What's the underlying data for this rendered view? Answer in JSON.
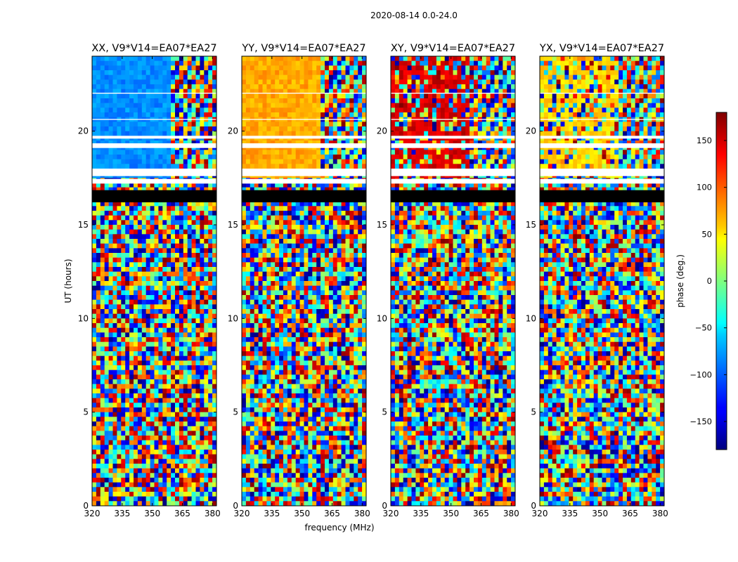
{
  "chart_data": {
    "type": "heatmap",
    "suptitle": "2020-08-14 0.0-24.0",
    "xlabel": "frequency (MHz)",
    "ylabel": "UT (hours)",
    "xlim": [
      320,
      382
    ],
    "ylim": [
      0,
      24
    ],
    "x_ticks": [
      320,
      335,
      350,
      365,
      380
    ],
    "y_ticks": [
      0,
      5,
      10,
      15,
      20
    ],
    "colorbar": {
      "label": "phase (deg.)",
      "range": [
        -180,
        180
      ],
      "ticks": [
        -150,
        -100,
        -50,
        0,
        50,
        100,
        150
      ],
      "tick_labels": [
        "−150",
        "−100",
        "−50",
        "0",
        "50",
        "100",
        "150"
      ],
      "colormap": "jet"
    },
    "panels": [
      {
        "title": "XX, V9*V14=EA07*EA27",
        "polarization": "XX",
        "dominant_phase_deg": -85
      },
      {
        "title": "YY, V9*V14=EA07*EA27",
        "polarization": "YY",
        "dominant_phase_deg": 75
      },
      {
        "title": "XY, V9*V14=EA07*EA27",
        "polarization": "XY",
        "dominant_phase_deg": 150
      },
      {
        "title": "YX, V9*V14=EA07*EA27",
        "polarization": "YX",
        "dominant_phase_deg": 60
      }
    ],
    "flagged_black_hours": [
      [
        16.2,
        16.85
      ]
    ],
    "flagged_white_hours": [
      [
        17.2,
        17.45
      ],
      [
        17.6,
        18.0
      ],
      [
        19.1,
        19.35
      ],
      [
        19.6,
        19.75
      ],
      [
        22.0,
        22.05
      ],
      [
        20.6,
        20.65
      ]
    ]
  }
}
